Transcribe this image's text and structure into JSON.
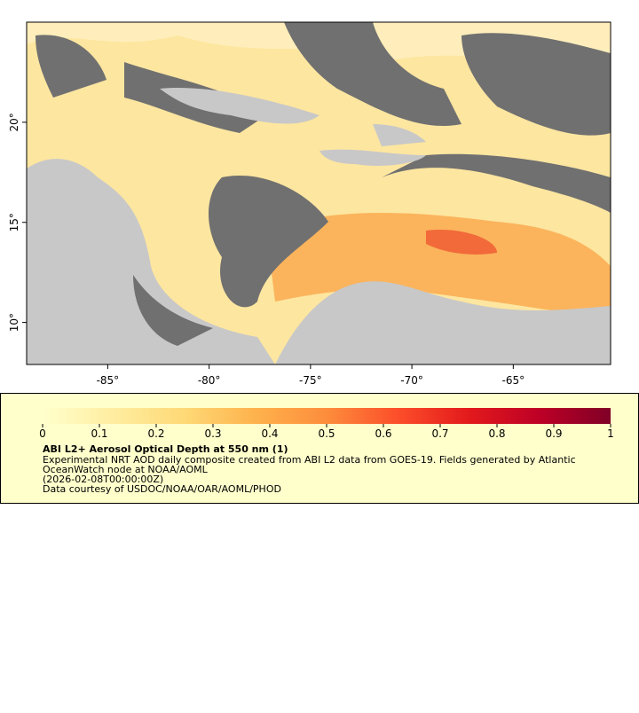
{
  "chart_data": {
    "type": "map",
    "xlim": [
      -89,
      -60.2
    ],
    "ylim": [
      7.9,
      25
    ],
    "xticks": [
      {
        "value": -85,
        "label": "-85°"
      },
      {
        "value": -80,
        "label": "-80°"
      },
      {
        "value": -75,
        "label": "-75°"
      },
      {
        "value": -70,
        "label": "-70°"
      },
      {
        "value": -65,
        "label": "-65°"
      }
    ],
    "yticks": [
      {
        "value": 10,
        "label": "10°"
      },
      {
        "value": 15,
        "label": "15°"
      },
      {
        "value": 20,
        "label": "20°"
      }
    ],
    "colorbar": {
      "lim": [
        0,
        1
      ],
      "ticks": [
        0,
        0.1,
        0.2,
        0.3,
        0.4,
        0.5,
        0.6,
        0.7,
        0.8,
        0.9,
        1
      ],
      "colors": [
        "#ffffcc",
        "#ffeda0",
        "#fed976",
        "#feb24c",
        "#fd8d3c",
        "#fc4e2a",
        "#e31a1c",
        "#bd0026",
        "#800026"
      ]
    },
    "title": "ABI L2+ Aerosol Optical Depth at 550 nm (1)",
    "description": [
      "Experimental NRT AOD daily composite created from ABI L2 data from GOES-19. Fields generated by Atlantic",
      "OceanWatch node at NOAA/AOML",
      "(2026-02-08T00:00:00Z)",
      "Data courtesy of USDOC/NOAA/OAR/AOML/PHOD"
    ]
  }
}
